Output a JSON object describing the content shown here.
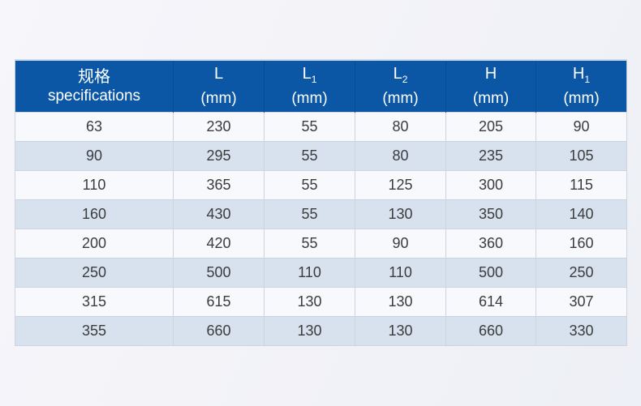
{
  "colors": {
    "header_bg": "#0b57a5",
    "header_text": "#ffffff",
    "header_divider": "#094e92",
    "header_topline": "#c7d8ea",
    "row_bg": "#f8f9fc",
    "row_alt_bg": "#d8e2ef",
    "cell_text": "#3c3c3c",
    "cell_divider": "#ccd4df",
    "border_outer": "#c3cdda"
  },
  "table": {
    "header": [
      {
        "line1": "规格",
        "sub": "",
        "line2": "specifications"
      },
      {
        "line1": "L",
        "sub": "",
        "line2": "(mm)"
      },
      {
        "line1": "L",
        "sub": "1",
        "line2": "(mm)"
      },
      {
        "line1": "L",
        "sub": "2",
        "line2": "(mm)"
      },
      {
        "line1": "H",
        "sub": "",
        "line2": "(mm)"
      },
      {
        "line1": "H",
        "sub": "1",
        "line2": "(mm)"
      }
    ],
    "rows": [
      [
        "63",
        "230",
        "55",
        "80",
        "205",
        "90"
      ],
      [
        "90",
        "295",
        "55",
        "80",
        "235",
        "105"
      ],
      [
        "110",
        "365",
        "55",
        "125",
        "300",
        "115"
      ],
      [
        "160",
        "430",
        "55",
        "130",
        "350",
        "140"
      ],
      [
        "200",
        "420",
        "55",
        "90",
        "360",
        "160"
      ],
      [
        "250",
        "500",
        "110",
        "110",
        "500",
        "250"
      ],
      [
        "315",
        "615",
        "130",
        "130",
        "614",
        "307"
      ],
      [
        "355",
        "660",
        "130",
        "130",
        "660",
        "330"
      ]
    ]
  },
  "chart_data": {
    "type": "table",
    "title": "",
    "columns": [
      "规格 specifications",
      "L (mm)",
      "L1 (mm)",
      "L2 (mm)",
      "H (mm)",
      "H1 (mm)"
    ],
    "rows": [
      [
        63,
        230,
        55,
        80,
        205,
        90
      ],
      [
        90,
        295,
        55,
        80,
        235,
        105
      ],
      [
        110,
        365,
        55,
        125,
        300,
        115
      ],
      [
        160,
        430,
        55,
        130,
        350,
        140
      ],
      [
        200,
        420,
        55,
        90,
        360,
        160
      ],
      [
        250,
        500,
        110,
        110,
        500,
        250
      ],
      [
        315,
        615,
        130,
        130,
        614,
        307
      ],
      [
        355,
        660,
        130,
        130,
        660,
        330
      ]
    ]
  }
}
